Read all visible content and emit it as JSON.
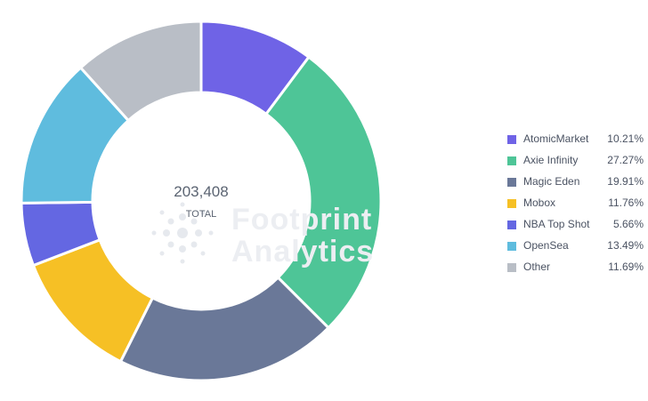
{
  "chart_data": {
    "type": "pie",
    "variant": "donut",
    "center_total": "203,408",
    "center_label": "TOTAL",
    "legend_position": "right",
    "watermark": [
      "Footprint",
      "Analytics"
    ],
    "categories": [
      "AtomicMarket",
      "Axie Infinity",
      "Magic Eden",
      "Mobox",
      "NBA Top Shot",
      "OpenSea",
      "Other"
    ],
    "values": [
      10.21,
      27.27,
      19.91,
      11.76,
      5.66,
      13.49,
      11.69
    ],
    "value_labels": [
      "10.21%",
      "27.27%",
      "19.91%",
      "11.76%",
      "5.66%",
      "13.49%",
      "11.69%"
    ],
    "colors": [
      "#6f63e6",
      "#4ec597",
      "#6a7898",
      "#f6c025",
      "#6467e2",
      "#5fbcde",
      "#b9bec6"
    ]
  }
}
